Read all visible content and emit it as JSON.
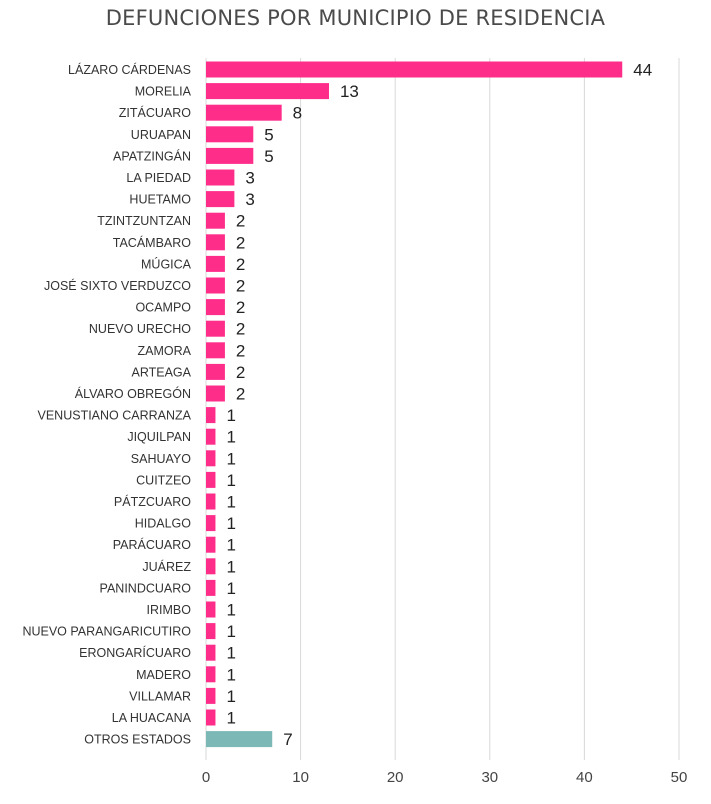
{
  "chart_data": {
    "type": "bar",
    "orientation": "horizontal",
    "title": "DEFUNCIONES POR MUNICIPIO DE RESIDENCIA",
    "xlabel": "",
    "ylabel": "",
    "xlim": [
      0,
      50
    ],
    "x_ticks": [
      0,
      10,
      20,
      30,
      40,
      50
    ],
    "grid": true,
    "categories": [
      "LÁZARO CÁRDENAS",
      "MORELIA",
      "ZITÁCUARO",
      "URUAPAN",
      "APATZINGÁN",
      "LA PIEDAD",
      "HUETAMO",
      "TZINTZUNTZAN",
      "TACÁMBARO",
      "MÚGICA",
      "JOSÉ SIXTO VERDUZCO",
      "OCAMPO",
      "NUEVO URECHO",
      "ZAMORA",
      "ARTEAGA",
      "ÁLVARO OBREGÓN",
      "VENUSTIANO CARRANZA",
      "JIQUILPAN",
      "SAHUAYO",
      "CUITZEO",
      "PÁTZCUARO",
      "HIDALGO",
      "PARÁCUARO",
      "JUÁREZ",
      "PANINDCUARO",
      "IRIMBO",
      "NUEVO PARANGARICUTIRO",
      "ERONGARÍCUARO",
      "MADERO",
      "VILLAMAR",
      "LA HUACANA",
      "OTROS ESTADOS"
    ],
    "values": [
      44,
      13,
      8,
      5,
      5,
      3,
      3,
      2,
      2,
      2,
      2,
      2,
      2,
      2,
      2,
      2,
      1,
      1,
      1,
      1,
      1,
      1,
      1,
      1,
      1,
      1,
      1,
      1,
      1,
      1,
      1,
      7
    ],
    "colors": {
      "primary": "#FF2D8A",
      "highlight": "#7BB8B6",
      "grid": "#D9D9D9",
      "highlight_category": "OTROS ESTADOS"
    },
    "data_labels": true
  }
}
